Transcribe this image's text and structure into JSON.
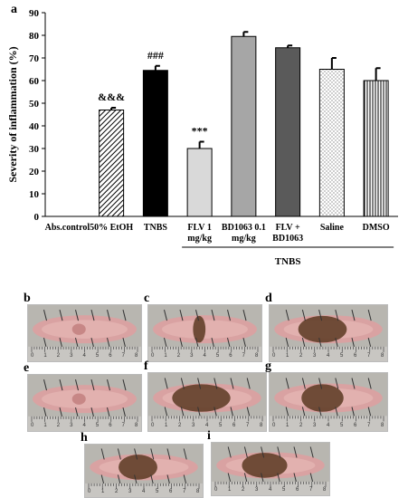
{
  "panel_labels": {
    "a": "a",
    "b": "b",
    "c": "c",
    "d": "d",
    "e": "e",
    "f": "f",
    "g": "g",
    "h": "h",
    "i": "i"
  },
  "chart_data": {
    "type": "bar",
    "ylabel": "Severity of inflammation (%)",
    "ylim": [
      0,
      90
    ],
    "yticks": [
      0,
      10,
      20,
      30,
      40,
      50,
      60,
      70,
      80,
      90
    ],
    "grid": false,
    "categories": [
      "Abs.control",
      "50% EtOH",
      "TNBS",
      "FLV 1 mg/kg",
      "BD1063 0.1 mg/kg",
      "FLV + BD1063",
      "Saline",
      "DMSO"
    ],
    "category_lines": [
      [
        "Abs.control"
      ],
      [
        "50% EtOH"
      ],
      [
        "TNBS"
      ],
      [
        "FLV 1",
        "mg/kg"
      ],
      [
        "BD1063 0.1",
        "mg/kg"
      ],
      [
        "FLV +",
        "BD1063"
      ],
      [
        "Saline"
      ],
      [
        "DMSO"
      ]
    ],
    "values": [
      0,
      47,
      64.5,
      30,
      79.5,
      74.5,
      65,
      60
    ],
    "errors": [
      0,
      1,
      2,
      3,
      2,
      1,
      5,
      5.5
    ],
    "annotations": [
      "",
      "&&&",
      "###",
      "***",
      "",
      "",
      "",
      ""
    ],
    "bar_fills": [
      "none",
      "diagonal-hatch",
      "#000000",
      "#d9d9d9",
      "#a6a6a6",
      "#5a5a5a",
      "dots",
      "vertical-lines"
    ],
    "group_label": "TNBS",
    "group_span": [
      "FLV 1 mg/kg",
      "DMSO"
    ]
  },
  "colors": {
    "tissue": "#d9a2a2",
    "tissue_light": "#e6b8b5",
    "tissue_dark": "#5a3a22",
    "ruler": "#c8c6c2",
    "photo_bg": "#b8b6b0"
  },
  "photos": [
    {
      "id": "b",
      "damage": 0.05,
      "ruler_numbers": [
        "0",
        "1",
        "2",
        "3",
        "4",
        "5",
        "6",
        "7",
        "8"
      ]
    },
    {
      "id": "c",
      "damage": 0.2,
      "ruler_numbers": [
        "0",
        "1",
        "2",
        "3",
        "4",
        "5",
        "6",
        "7",
        "8"
      ]
    },
    {
      "id": "d",
      "damage": 0.75,
      "ruler_numbers": [
        "0",
        "1",
        "2",
        "3",
        "4",
        "5",
        "6",
        "7",
        "8"
      ]
    },
    {
      "id": "e",
      "damage": 0.1,
      "ruler_numbers": [
        "0",
        "1",
        "2",
        "3",
        "4",
        "5",
        "6",
        "7",
        "8"
      ]
    },
    {
      "id": "f",
      "damage": 0.9,
      "ruler_numbers": [
        "0",
        "1",
        "2",
        "3",
        "4",
        "5",
        "6",
        "7",
        "8"
      ]
    },
    {
      "id": "g",
      "damage": 0.65,
      "ruler_numbers": [
        "0",
        "1",
        "2",
        "3",
        "4",
        "5",
        "6",
        "7",
        "8"
      ]
    },
    {
      "id": "h",
      "damage": 0.6,
      "ruler_numbers": [
        "0",
        "1",
        "2",
        "3",
        "4",
        "5",
        "6",
        "7",
        "8"
      ]
    },
    {
      "id": "i",
      "damage": 0.7,
      "ruler_numbers": [
        "0",
        "1",
        "2",
        "3",
        "4",
        "5",
        "6",
        "7",
        "8"
      ]
    }
  ]
}
